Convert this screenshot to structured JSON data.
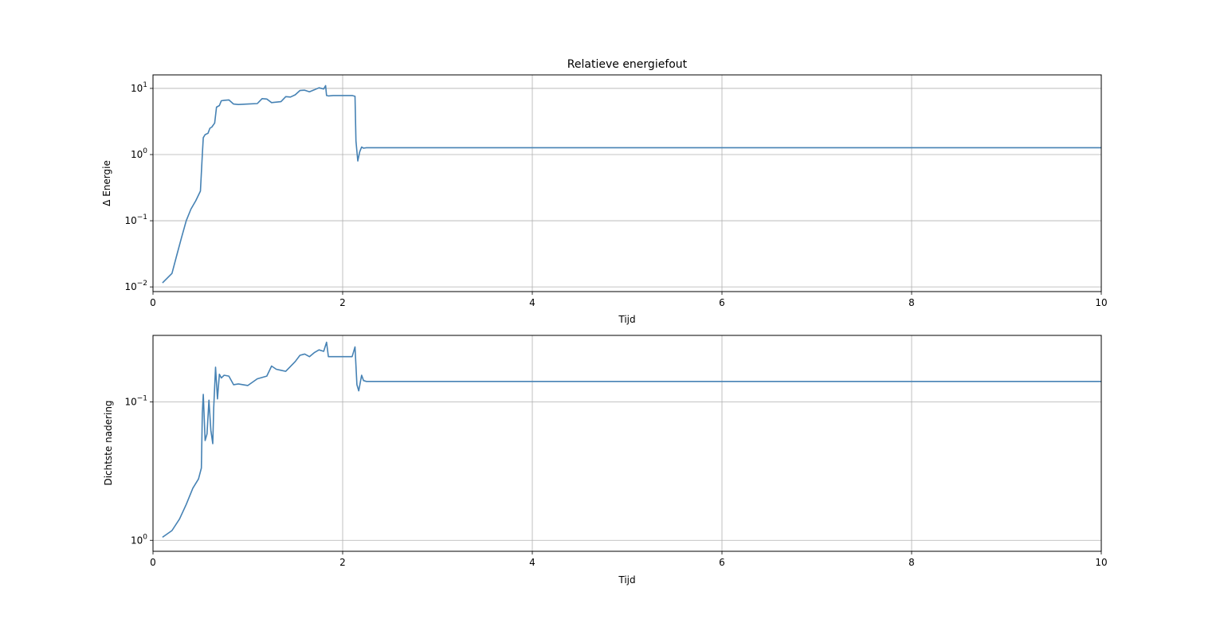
{
  "chart_data": [
    {
      "type": "line",
      "title": "Relatieve energiefout",
      "xlabel": "Tijd",
      "ylabel": "Δ Energie",
      "yscale": "log",
      "xlim": [
        0,
        10
      ],
      "ylim": [
        0.0085,
        16
      ],
      "grid": true,
      "color": "#4682b4",
      "xticks": [
        0,
        2,
        4,
        6,
        8,
        10
      ],
      "yticks": [
        {
          "value": 0.01,
          "base": "10",
          "exp": "−2"
        },
        {
          "value": 0.1,
          "base": "10",
          "exp": "−1"
        },
        {
          "value": 1,
          "base": "10",
          "exp": "0"
        },
        {
          "value": 10,
          "base": "10",
          "exp": "1"
        }
      ],
      "series": [
        {
          "x": [
            0.1,
            0.2,
            0.25,
            0.3,
            0.35,
            0.4,
            0.45,
            0.5,
            0.52,
            0.53,
            0.55,
            0.58,
            0.6,
            0.62,
            0.65,
            0.67,
            0.7,
            0.72,
            0.75,
            0.8,
            0.85,
            0.9,
            1.0,
            1.1,
            1.15,
            1.2,
            1.25,
            1.3,
            1.35,
            1.4,
            1.45,
            1.5,
            1.55,
            1.6,
            1.65,
            1.7,
            1.75,
            1.8,
            1.82,
            1.83,
            1.85,
            1.9,
            2.0,
            2.1,
            2.13,
            2.14,
            2.16,
            2.18,
            2.2,
            2.22,
            2.25,
            3.0,
            5.0,
            8.0,
            10.0
          ],
          "y": [
            0.0115,
            0.016,
            0.03,
            0.055,
            0.1,
            0.15,
            0.2,
            0.28,
            1.0,
            1.8,
            2.0,
            2.1,
            2.5,
            2.6,
            3.0,
            5.2,
            5.5,
            6.5,
            6.6,
            6.7,
            5.8,
            5.7,
            5.8,
            5.9,
            7.0,
            6.9,
            6.1,
            6.2,
            6.3,
            7.5,
            7.4,
            8.0,
            9.3,
            9.4,
            8.9,
            9.5,
            10.2,
            9.8,
            11.0,
            7.8,
            7.7,
            7.8,
            7.8,
            7.8,
            7.6,
            1.6,
            0.8,
            1.1,
            1.3,
            1.25,
            1.27,
            1.27,
            1.27,
            1.27,
            1.27
          ]
        }
      ]
    },
    {
      "type": "line",
      "title": "",
      "xlabel": "Tijd",
      "ylabel": "Dichtste nadering",
      "yscale": "log",
      "xlim": [
        0,
        10
      ],
      "ylim": [
        0.033,
        1.2
      ],
      "inverted_y": true,
      "grid": true,
      "color": "#4682b4",
      "xticks": [
        0,
        2,
        4,
        6,
        8,
        10
      ],
      "yticks": [
        {
          "value": 0.1,
          "base": "10",
          "exp": "−1"
        },
        {
          "value": 1,
          "base": "10",
          "exp": "0"
        }
      ],
      "series": [
        {
          "x": [
            0.1,
            0.2,
            0.28,
            0.35,
            0.42,
            0.48,
            0.51,
            0.52,
            0.53,
            0.55,
            0.57,
            0.59,
            0.61,
            0.63,
            0.64,
            0.66,
            0.68,
            0.7,
            0.72,
            0.75,
            0.8,
            0.85,
            0.9,
            0.95,
            1.0,
            1.1,
            1.2,
            1.25,
            1.3,
            1.35,
            1.4,
            1.5,
            1.55,
            1.6,
            1.65,
            1.7,
            1.75,
            1.8,
            1.83,
            1.85,
            1.9,
            2.0,
            2.1,
            2.13,
            2.15,
            2.17,
            2.2,
            2.22,
            2.25,
            2.3,
            3.0,
            5.0,
            8.0,
            10.0
          ],
          "y": [
            0.95,
            0.85,
            0.7,
            0.55,
            0.42,
            0.36,
            0.3,
            0.12,
            0.088,
            0.19,
            0.17,
            0.097,
            0.16,
            0.2,
            0.11,
            0.056,
            0.095,
            0.063,
            0.067,
            0.064,
            0.065,
            0.075,
            0.074,
            0.075,
            0.076,
            0.068,
            0.065,
            0.055,
            0.058,
            0.059,
            0.06,
            0.051,
            0.046,
            0.045,
            0.047,
            0.044,
            0.042,
            0.043,
            0.037,
            0.047,
            0.047,
            0.047,
            0.047,
            0.04,
            0.075,
            0.083,
            0.064,
            0.07,
            0.071,
            0.071,
            0.071,
            0.071,
            0.071,
            0.071
          ]
        }
      ]
    }
  ]
}
